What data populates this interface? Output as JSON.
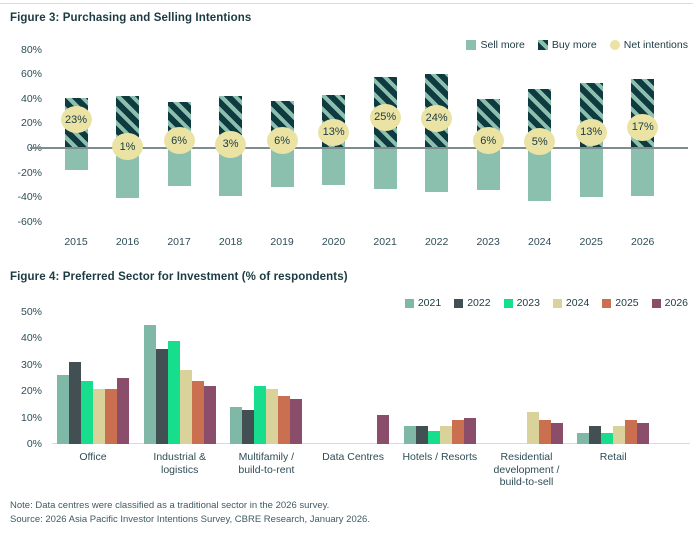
{
  "colors": {
    "sell_more": "#8BBFAE",
    "buy_more": "#0F3A40",
    "net_circle": "#EAE3A4",
    "zero_line": "#7E8C8E",
    "axis_baseline": "#D5DCDD",
    "title_text": "#1B3A42",
    "axis_text": "#2E4D57"
  },
  "chart_data": [
    {
      "type": "bar",
      "title": "Figure 3: Purchasing and Selling Intentions",
      "categories": [
        "2015",
        "2016",
        "2017",
        "2018",
        "2019",
        "2020",
        "2021",
        "2022",
        "2023",
        "2024",
        "2025",
        "2026"
      ],
      "series": [
        {
          "name": "Sell more",
          "color": "#8BBFAE",
          "style": "solid-bar",
          "values": [
            -18,
            -41,
            -31,
            -39,
            -32,
            -30,
            -33,
            -36,
            -34,
            -43,
            -40,
            -39
          ]
        },
        {
          "name": "Buy more",
          "color": "#0F3A40",
          "style": "diagonal-hatch-bar",
          "hatch_color": "#8BBFAE",
          "values": [
            41,
            42,
            37,
            42,
            38,
            43,
            58,
            60,
            40,
            48,
            53,
            56
          ]
        },
        {
          "name": "Net intentions",
          "color": "#EAE3A4",
          "style": "circle-label",
          "values": [
            23,
            1,
            6,
            3,
            6,
            13,
            25,
            24,
            6,
            5,
            13,
            17
          ]
        }
      ],
      "ylim": [
        -60,
        80
      ],
      "ytick_step": 20,
      "ytick_format": "percent",
      "grid": false,
      "legend_position": "top-right"
    },
    {
      "type": "bar",
      "title": "Figure 4: Preferred Sector for Investment (% of respondents)",
      "categories": [
        "Office",
        "Industrial & logistics",
        "Multifamily / build-to-rent",
        "Data Centres",
        "Hotels / Resorts",
        "Residential development / build-to-sell",
        "Retail"
      ],
      "category_label_lines": [
        [
          "Office"
        ],
        [
          "Industrial &",
          "logistics"
        ],
        [
          "Multifamily /",
          "build-to-rent"
        ],
        [
          "Data Centres"
        ],
        [
          "Hotels / Resorts"
        ],
        [
          "Residential",
          "development /",
          "build-to-sell"
        ],
        [
          "Retail"
        ]
      ],
      "series": [
        {
          "name": "2021",
          "color": "#7FB8A6",
          "values": [
            26,
            45,
            14,
            0,
            7,
            0,
            4
          ]
        },
        {
          "name": "2022",
          "color": "#424F53",
          "values": [
            31,
            36,
            13,
            0,
            7,
            0,
            7
          ]
        },
        {
          "name": "2023",
          "color": "#16DE8C",
          "values": [
            24,
            39,
            22,
            0,
            5,
            0,
            4
          ]
        },
        {
          "name": "2024",
          "color": "#D9D29B",
          "values": [
            21,
            28,
            21,
            0,
            7,
            12,
            7
          ]
        },
        {
          "name": "2025",
          "color": "#CA6F50",
          "values": [
            21,
            24,
            18,
            0,
            9,
            9,
            9
          ]
        },
        {
          "name": "2026",
          "color": "#8A4E6B",
          "values": [
            25,
            22,
            17,
            11,
            10,
            8,
            8
          ]
        }
      ],
      "ylim": [
        0,
        50
      ],
      "ytick_step": 10,
      "ytick_format": "percent",
      "grid": false,
      "legend_position": "top-right"
    }
  ],
  "notes": {
    "note": "Note: Data centres were classified as a traditional sector in the 2026 survey.",
    "source": "Source: 2026 Asia Pacific Investor Intentions Survey, CBRE Research, January 2026."
  }
}
